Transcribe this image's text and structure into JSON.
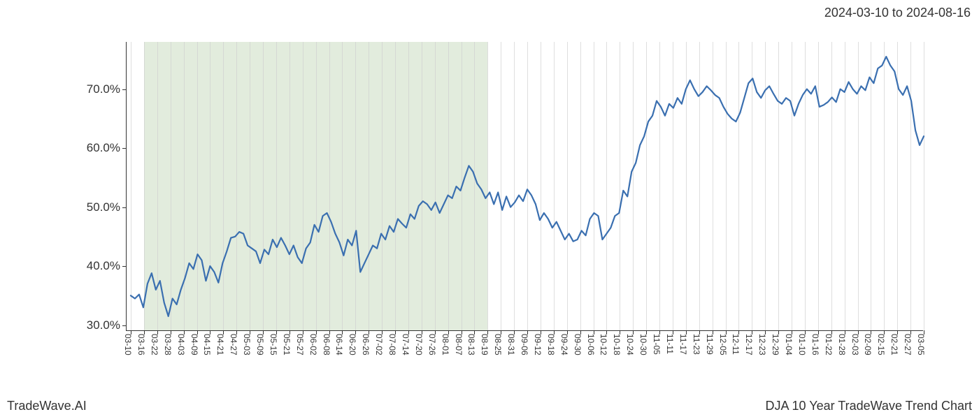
{
  "header": {
    "date_range": "2024-03-10 to 2024-08-16"
  },
  "footer": {
    "left": "TradeWave.AI",
    "right": "DJA 10 Year TradeWave Trend Chart"
  },
  "chart": {
    "type": "line",
    "background_color": "#ffffff",
    "line_color": "#3a6fb0",
    "line_width": 2.2,
    "grid_color": "#d0d0d0",
    "axis_color": "#333333",
    "highlight_color": "rgba(140,180,120,0.25)",
    "ylim": [
      29,
      78
    ],
    "yticks": [
      30,
      40,
      50,
      60,
      70
    ],
    "ytick_labels": [
      "30.0%",
      "40.0%",
      "50.0%",
      "60.0%",
      "70.0%"
    ],
    "xtick_labels": [
      "03-10",
      "03-16",
      "03-22",
      "03-28",
      "04-03",
      "04-09",
      "04-15",
      "04-21",
      "04-27",
      "05-03",
      "05-09",
      "05-15",
      "05-21",
      "05-27",
      "06-02",
      "06-08",
      "06-14",
      "06-20",
      "06-26",
      "07-02",
      "07-08",
      "07-14",
      "07-20",
      "07-26",
      "08-01",
      "08-07",
      "08-13",
      "08-19",
      "08-25",
      "08-31",
      "09-06",
      "09-12",
      "09-18",
      "09-24",
      "09-30",
      "10-06",
      "10-12",
      "10-18",
      "10-24",
      "10-30",
      "11-05",
      "11-11",
      "11-17",
      "11-23",
      "11-29",
      "12-05",
      "12-11",
      "12-17",
      "12-23",
      "12-29",
      "01-04",
      "01-10",
      "01-16",
      "01-22",
      "01-28",
      "02-03",
      "02-09",
      "02-15",
      "02-21",
      "02-27",
      "03-05"
    ],
    "highlight_x_start": 1,
    "highlight_x_end": 27,
    "label_fontsize": 17,
    "xtick_fontsize": 12,
    "values": [
      35.0,
      34.5,
      35.2,
      33.0,
      37.0,
      38.8,
      36.0,
      37.5,
      33.8,
      31.5,
      34.5,
      33.5,
      36.0,
      38.0,
      40.5,
      39.5,
      42.0,
      41.0,
      37.5,
      40.0,
      39.0,
      37.2,
      40.5,
      42.5,
      44.8,
      45.0,
      45.8,
      45.5,
      43.5,
      43.0,
      42.5,
      40.5,
      42.8,
      42.0,
      44.5,
      43.2,
      44.8,
      43.5,
      42.0,
      43.5,
      41.5,
      40.5,
      43.0,
      44.0,
      47.0,
      45.8,
      48.5,
      49.0,
      47.5,
      45.5,
      44.0,
      41.8,
      44.5,
      43.5,
      46.0,
      39.0,
      40.5,
      42.0,
      43.5,
      43.0,
      45.5,
      44.5,
      46.8,
      45.8,
      48.0,
      47.2,
      46.5,
      48.8,
      48.0,
      50.2,
      51.0,
      50.5,
      49.5,
      50.8,
      49.0,
      50.5,
      52.0,
      51.5,
      53.5,
      52.8,
      55.0,
      57.0,
      56.0,
      54.0,
      53.0,
      51.5,
      52.5,
      50.5,
      52.5,
      49.5,
      51.8,
      50.0,
      50.8,
      52.0,
      51.0,
      53.0,
      52.0,
      50.5,
      47.8,
      49.0,
      48.0,
      46.5,
      47.5,
      46.0,
      44.5,
      45.5,
      44.2,
      44.5,
      46.0,
      45.2,
      48.0,
      49.0,
      48.5,
      44.5,
      45.5,
      46.5,
      48.5,
      49.0,
      52.8,
      51.8,
      56.0,
      57.5,
      60.5,
      62.0,
      64.5,
      65.5,
      68.0,
      67.0,
      65.5,
      67.5,
      66.8,
      68.5,
      67.5,
      70.0,
      71.5,
      70.0,
      68.8,
      69.5,
      70.5,
      69.8,
      69.0,
      68.5,
      67.0,
      65.8,
      65.0,
      64.5,
      66.0,
      68.5,
      71.0,
      71.8,
      69.5,
      68.5,
      69.8,
      70.5,
      69.2,
      68.0,
      67.5,
      68.5,
      68.0,
      65.5,
      67.5,
      69.0,
      70.0,
      69.2,
      70.5,
      67.0,
      67.3,
      67.8,
      68.6,
      67.8,
      70.0,
      69.5,
      71.2,
      70.0,
      69.2,
      70.5,
      69.8,
      72.0,
      71.0,
      73.5,
      74.0,
      75.5,
      74.0,
      73.0,
      70.0,
      69.0,
      70.5,
      68.0,
      63.0,
      60.5,
      62.0
    ]
  }
}
